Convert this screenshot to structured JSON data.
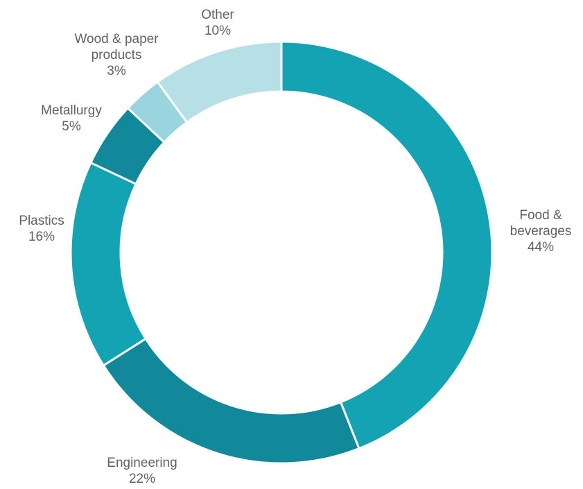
{
  "chart_data": {
    "type": "pie",
    "variant": "donut",
    "title": "",
    "legend": "none",
    "slices": [
      {
        "name": "Food & beverages",
        "label_lines": [
          "Food &",
          "beverages"
        ],
        "value": 44,
        "value_label": "44%",
        "color": "#14a3b2"
      },
      {
        "name": "Engineering",
        "label_lines": [
          "Engineering"
        ],
        "value": 22,
        "value_label": "22%",
        "color": "#11899a"
      },
      {
        "name": "Plastics",
        "label_lines": [
          "Plastics"
        ],
        "value": 16,
        "value_label": "16%",
        "color": "#14a3b2"
      },
      {
        "name": "Metallurgy",
        "label_lines": [
          "Metallurgy"
        ],
        "value": 5,
        "value_label": "5%",
        "color": "#11899a"
      },
      {
        "name": "Wood & paper products",
        "label_lines": [
          "Wood & paper",
          "products"
        ],
        "value": 3,
        "value_label": "3%",
        "color": "#9ad5df"
      },
      {
        "name": "Other",
        "label_lines": [
          "Other"
        ],
        "value": 10,
        "value_label": "10%",
        "color": "#b7e0e6"
      }
    ]
  }
}
